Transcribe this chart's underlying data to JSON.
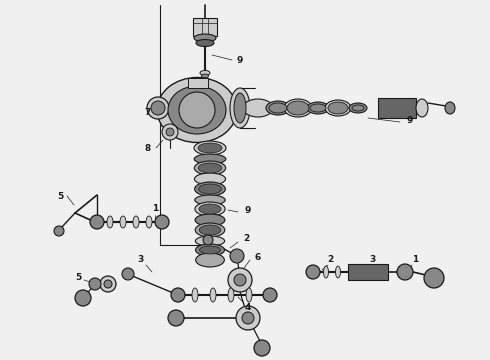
{
  "bg_color": "#f0f0f0",
  "lc": "#1a1a1a",
  "gray1": "#aaaaaa",
  "gray2": "#888888",
  "gray3": "#666666",
  "gray4": "#cccccc",
  "white": "#ffffff",
  "label_fs": 6.5,
  "lw_main": 0.9,
  "lw_thin": 0.6,
  "lw_thick": 1.5,
  "figw": 4.9,
  "figh": 3.6,
  "dpi": 100,
  "xlim": [
    0,
    490
  ],
  "ylim": [
    360,
    0
  ]
}
